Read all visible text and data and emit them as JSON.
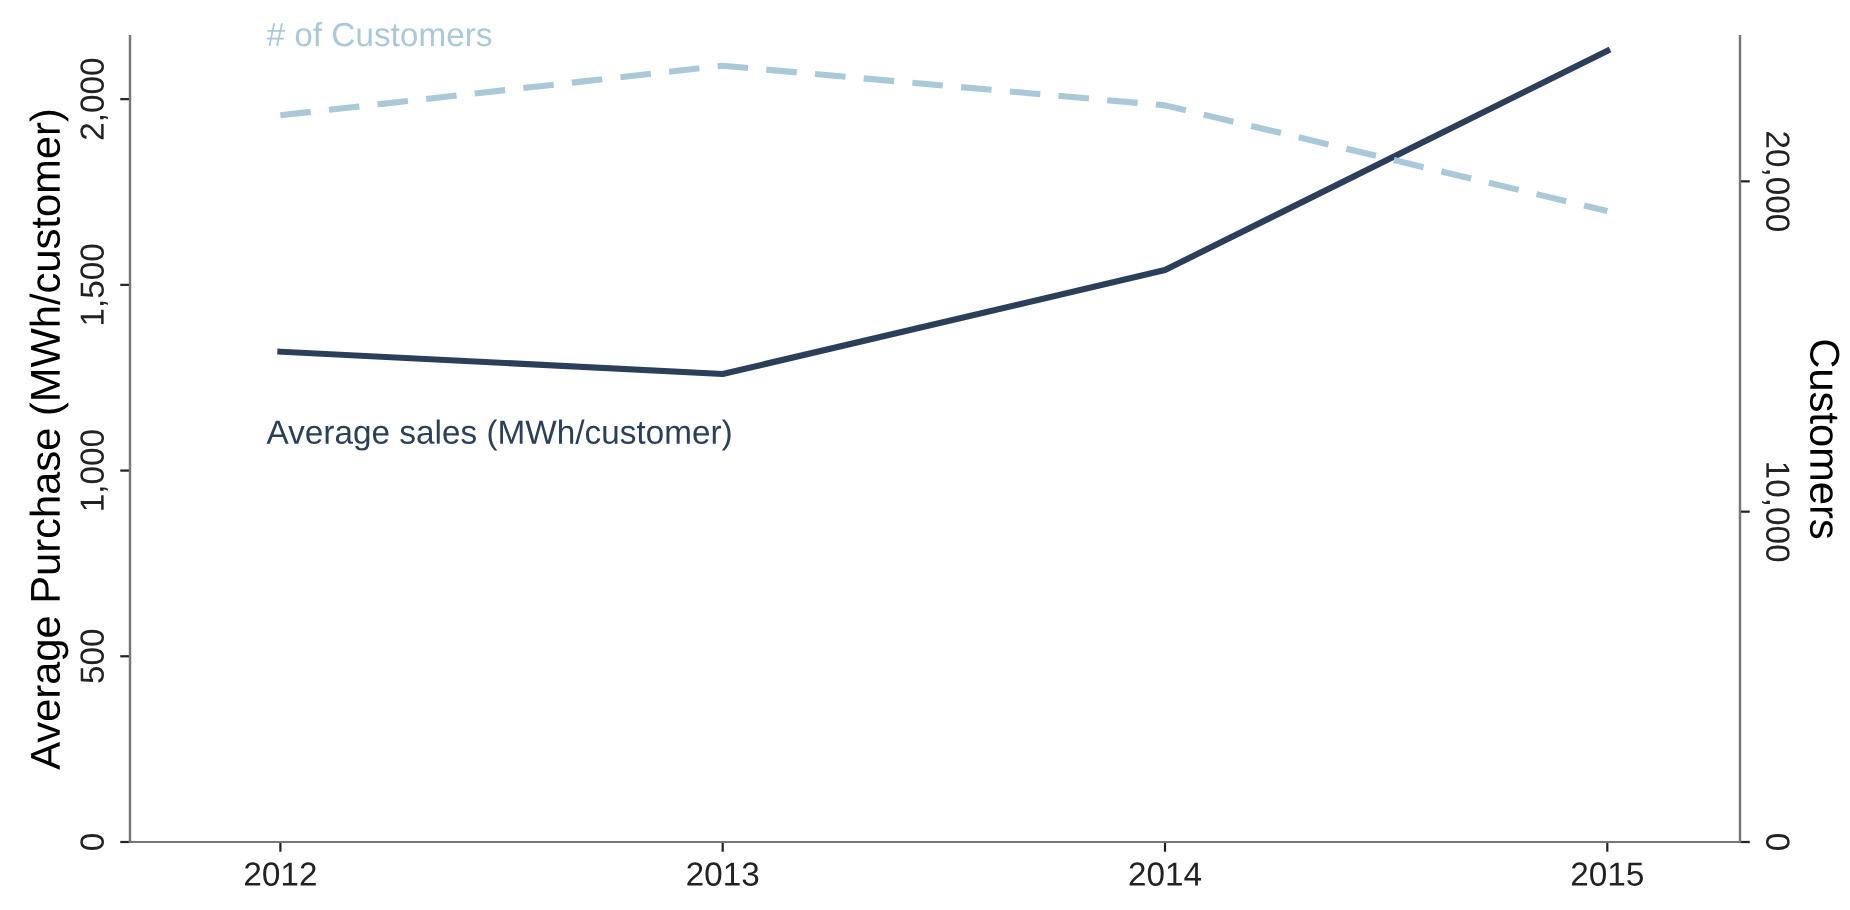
{
  "chart_data": {
    "type": "line",
    "ylabel": "Average Purchase (MWh/customer)",
    "y2label": "Customers",
    "x": [
      2012,
      2013,
      2014,
      2015
    ],
    "xlim": [
      2011.66,
      2015.3
    ],
    "xticks": [
      2012,
      2013,
      2014,
      2015
    ],
    "ylim": [
      0,
      2170
    ],
    "yticks": [
      0,
      {
        "value": 500,
        "label": "500"
      },
      {
        "value": 1000,
        "label": "1,000"
      },
      {
        "value": 1500,
        "label": "1,500"
      },
      {
        "value": 2000,
        "label": "2,000"
      }
    ],
    "y2lim": [
      0,
      24400
    ],
    "y2ticks": [
      0,
      {
        "value": 10000,
        "label": "10,000"
      },
      {
        "value": 20000,
        "label": "20,000"
      }
    ],
    "grid": false,
    "legend": false,
    "series": [
      {
        "name": "Average sales (MWh/customer)",
        "color": "#2b3f5a",
        "values": [
          1320,
          1260,
          1540,
          2130
        ],
        "line_style": "solid"
      },
      {
        "name": "# of Customers",
        "color": "#a9c8d8",
        "values": [
          22000,
          23500,
          22300,
          19100
        ],
        "line_style": "dashed",
        "axis": "y2"
      }
    ]
  }
}
